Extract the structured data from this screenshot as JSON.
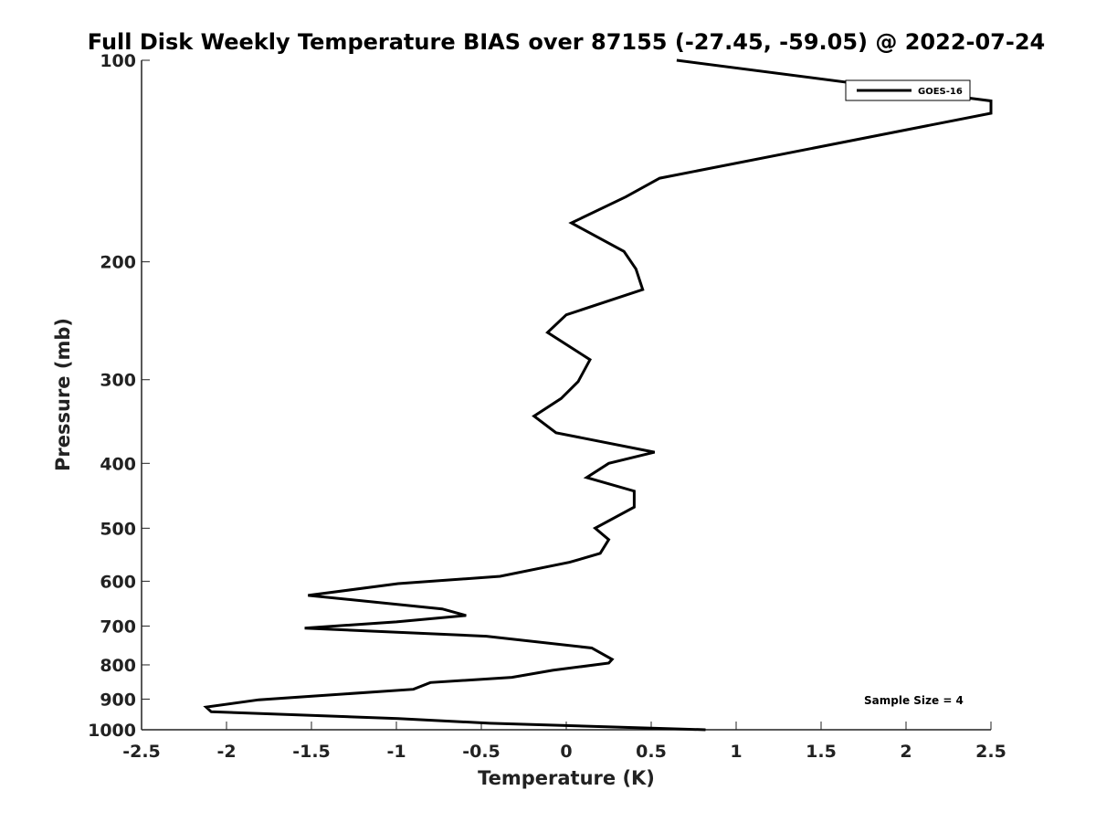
{
  "chart_data": {
    "type": "line",
    "title": "Full Disk Weekly Temperature BIAS over 87155 (-27.45, -59.05) @ 2022-07-24",
    "xlabel": "Temperature (K)",
    "ylabel": "Pressure (mb)",
    "xlim": [
      -2.5,
      2.5
    ],
    "ylim": [
      100,
      1000
    ],
    "y_scale": "log",
    "y_reversed": true,
    "x_ticks": [
      "-2.5",
      "-2",
      "-1.5",
      "-1",
      "-0.5",
      "0",
      "0.5",
      "1",
      "1.5",
      "2",
      "2.5"
    ],
    "y_ticks": [
      "100",
      "200",
      "300",
      "400",
      "500",
      "600",
      "700",
      "800",
      "900",
      "1000"
    ],
    "legend_position": "top-right",
    "color": "#000000",
    "series": [
      {
        "name": "GOES-16",
        "color": "#000000",
        "points": [
          [
            0.65,
            100
          ],
          [
            2.5,
            115
          ],
          [
            2.5,
            120
          ],
          [
            0.55,
            150
          ],
          [
            0.35,
            160
          ],
          [
            0.03,
            175
          ],
          [
            0.34,
            193
          ],
          [
            0.41,
            205
          ],
          [
            0.45,
            220
          ],
          [
            0.0,
            240
          ],
          [
            -0.11,
            255
          ],
          [
            0.14,
            280
          ],
          [
            0.07,
            302
          ],
          [
            -0.03,
            320
          ],
          [
            -0.19,
            340
          ],
          [
            -0.06,
            360
          ],
          [
            0.52,
            385
          ],
          [
            0.25,
            400
          ],
          [
            0.12,
            420
          ],
          [
            0.4,
            440
          ],
          [
            0.4,
            465
          ],
          [
            0.17,
            500
          ],
          [
            0.25,
            520
          ],
          [
            0.2,
            545
          ],
          [
            0.02,
            562
          ],
          [
            -0.39,
            590
          ],
          [
            -0.99,
            605
          ],
          [
            -1.52,
            630
          ],
          [
            -0.73,
            660
          ],
          [
            -0.59,
            675
          ],
          [
            -1.0,
            690
          ],
          [
            -1.54,
            705
          ],
          [
            -0.47,
            725
          ],
          [
            0.15,
            755
          ],
          [
            0.27,
            785
          ],
          [
            0.25,
            795
          ],
          [
            -0.08,
            815
          ],
          [
            -0.32,
            835
          ],
          [
            -0.8,
            850
          ],
          [
            -0.9,
            870
          ],
          [
            -1.81,
            902
          ],
          [
            -2.12,
            925
          ],
          [
            -2.09,
            940
          ],
          [
            -0.99,
            962
          ],
          [
            -0.45,
            978
          ],
          [
            0.82,
            1000
          ]
        ]
      }
    ],
    "annotation": "Sample Size = 4"
  }
}
